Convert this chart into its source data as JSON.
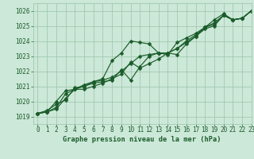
{
  "xlabel": "Graphe pression niveau de la mer (hPa)",
  "xlim": [
    -0.5,
    23
  ],
  "ylim": [
    1018.5,
    1026.5
  ],
  "yticks": [
    1019,
    1020,
    1021,
    1022,
    1023,
    1024,
    1025,
    1026
  ],
  "xticks": [
    0,
    1,
    2,
    3,
    4,
    5,
    6,
    7,
    8,
    9,
    10,
    11,
    12,
    13,
    14,
    15,
    16,
    17,
    18,
    19,
    20,
    21,
    22,
    23
  ],
  "bg_color": "#cce8d8",
  "grid_color": "#99c4aa",
  "line_color": "#1a5c2a",
  "line1": [
    1019.2,
    1019.3,
    1019.5,
    1020.2,
    1020.8,
    1021.0,
    1021.3,
    1021.5,
    1022.7,
    1023.2,
    1024.0,
    1023.9,
    1023.8,
    1023.2,
    1023.2,
    1023.1,
    1023.8,
    1024.3,
    1024.8,
    1025.0,
    1025.7,
    1025.4,
    1025.5,
    1026.0
  ],
  "line2": [
    1019.2,
    1019.4,
    1019.8,
    1020.1,
    1020.9,
    1021.0,
    1021.2,
    1021.3,
    1021.4,
    1022.1,
    1021.4,
    1022.3,
    1023.0,
    1023.2,
    1023.1,
    1023.9,
    1024.2,
    1024.5,
    1024.9,
    1025.4,
    1025.8,
    1025.4,
    1025.5,
    1026.0
  ],
  "line3": [
    1019.2,
    1019.3,
    1020.0,
    1020.7,
    1020.8,
    1020.8,
    1021.0,
    1021.2,
    1021.5,
    1021.8,
    1022.6,
    1022.2,
    1022.5,
    1022.8,
    1023.2,
    1023.5,
    1024.0,
    1024.4,
    1024.9,
    1025.1,
    1025.7,
    1025.4,
    1025.5,
    1026.0
  ],
  "line4": [
    1019.2,
    1019.3,
    1019.6,
    1020.5,
    1020.8,
    1021.1,
    1021.3,
    1021.4,
    1021.6,
    1022.0,
    1022.5,
    1023.0,
    1023.1,
    1023.2,
    1023.2,
    1023.5,
    1023.9,
    1024.3,
    1024.9,
    1025.2,
    1025.7,
    1025.4,
    1025.5,
    1026.0
  ],
  "tick_fontsize": 5.5,
  "xlabel_fontsize": 6.2,
  "marker_size": 2.5,
  "line_width": 0.85
}
